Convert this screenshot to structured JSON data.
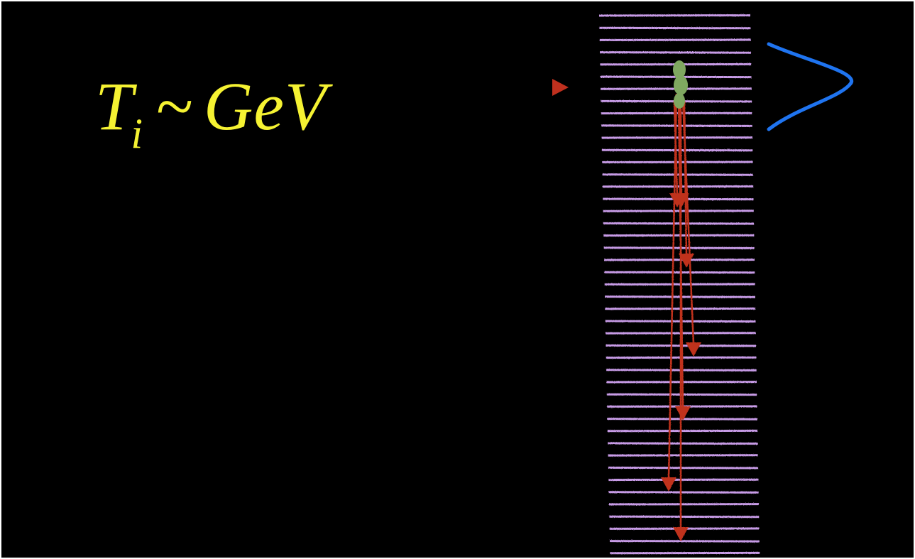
{
  "formula": {
    "symbol": "T",
    "subscript": "i",
    "relation": "~",
    "unit": "GeV"
  },
  "colors": {
    "background": "#000000",
    "text": "#f5f232",
    "arrow": "#c0301e",
    "layers": "#c79be6",
    "particle": "#7fa860",
    "curve": "#1f74f0"
  }
}
